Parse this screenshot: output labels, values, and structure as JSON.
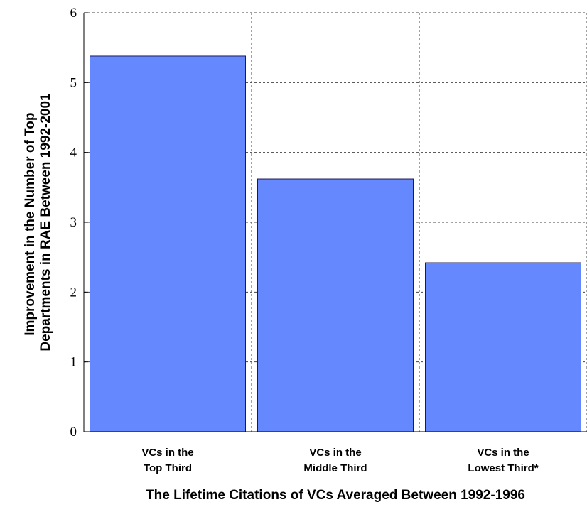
{
  "chart_data": {
    "type": "bar",
    "categories": [
      [
        "VCs in the",
        "Top Third"
      ],
      [
        "VCs in the",
        "Middle Third"
      ],
      [
        "VCs in the",
        "Lowest Third*"
      ]
    ],
    "values": [
      5.38,
      3.62,
      2.42
    ],
    "title": "",
    "xlabel": "The Lifetime Citations of VCs Averaged Between 1992-1996",
    "ylabel": [
      "Improvement in the Number of Top",
      "Departments in RAE Between 1992-2001"
    ],
    "ylim": [
      0,
      6
    ],
    "yticks": [
      "0",
      "1",
      "2",
      "3",
      "4",
      "5",
      "6"
    ],
    "grid": true,
    "bar_color": "#6688ff",
    "bar_edge_color": "#1a1a55"
  }
}
